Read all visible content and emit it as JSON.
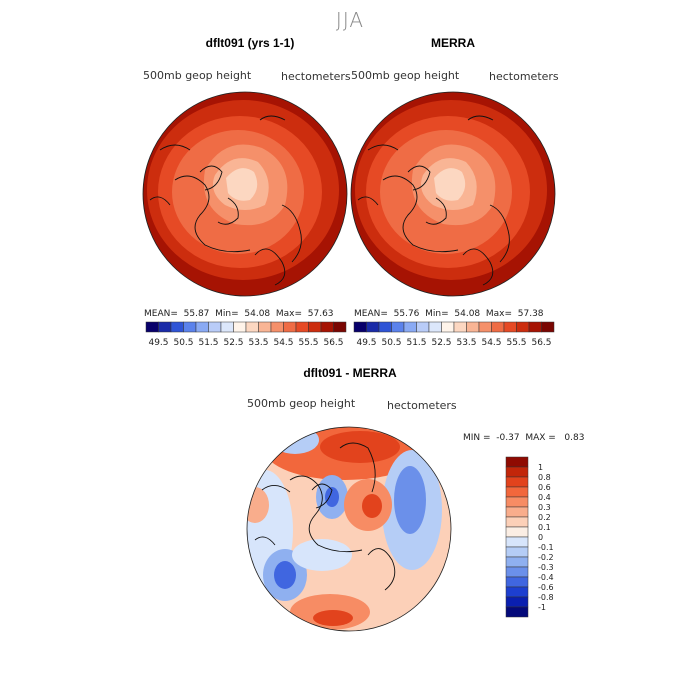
{
  "figure": {
    "season_title": "JJA",
    "panels": [
      {
        "title": "dflt091 (yrs 1-1)",
        "variable": "500mb geop height",
        "units": "hectometers",
        "stats": {
          "mean_label": "MEAN=",
          "mean": "55.87",
          "min_label": "Min=",
          "min": "54.08",
          "max_label": "Max=",
          "max": "57.63"
        }
      },
      {
        "title": "MERRA",
        "variable": "500mb geop height",
        "units": "hectometers",
        "stats": {
          "mean_label": "MEAN=",
          "mean": "55.76",
          "min_label": "Min=",
          "min": "54.08",
          "max_label": "Max=",
          "max": "57.38"
        }
      }
    ],
    "abs_colorbar": {
      "ticks": [
        "49.5",
        "50.5",
        "51.5",
        "52.5",
        "53.5",
        "54.5",
        "55.5",
        "56.5"
      ],
      "colors": [
        "#08006b",
        "#1a2ba8",
        "#2f54d6",
        "#5b82ec",
        "#8aaaf4",
        "#b9ccf8",
        "#dce7fb",
        "#fff4ea",
        "#fcd7c1",
        "#f9b595",
        "#f5906a",
        "#ef6c45",
        "#e64a25",
        "#cc2d0e",
        "#a61303",
        "#7a0602"
      ]
    },
    "diff_panel": {
      "title": "dflt091 - MERRA",
      "variable": "500mb geop height",
      "units": "hectometers",
      "stats": {
        "min_label": "MIN =",
        "min": "-0.37",
        "max_label": "MAX =",
        "max": "0.83"
      }
    },
    "diff_colorbar": {
      "levels": [
        "1",
        "0.8",
        "0.6",
        "0.4",
        "0.3",
        "0.2",
        "0.1",
        "0",
        "-0.1",
        "-0.2",
        "-0.3",
        "-0.4",
        "-0.6",
        "-0.8",
        "-1"
      ],
      "colors": [
        "#8f0b02",
        "#c2260a",
        "#e2431d",
        "#f2673c",
        "#f78c64",
        "#f9ad8c",
        "#fcd0b8",
        "#fbeee4",
        "#d7e5fb",
        "#b5cdf6",
        "#8fb0f0",
        "#6b90ea",
        "#4066e0",
        "#1d3fd0",
        "#0a1fb0",
        "#04097a"
      ]
    }
  }
}
